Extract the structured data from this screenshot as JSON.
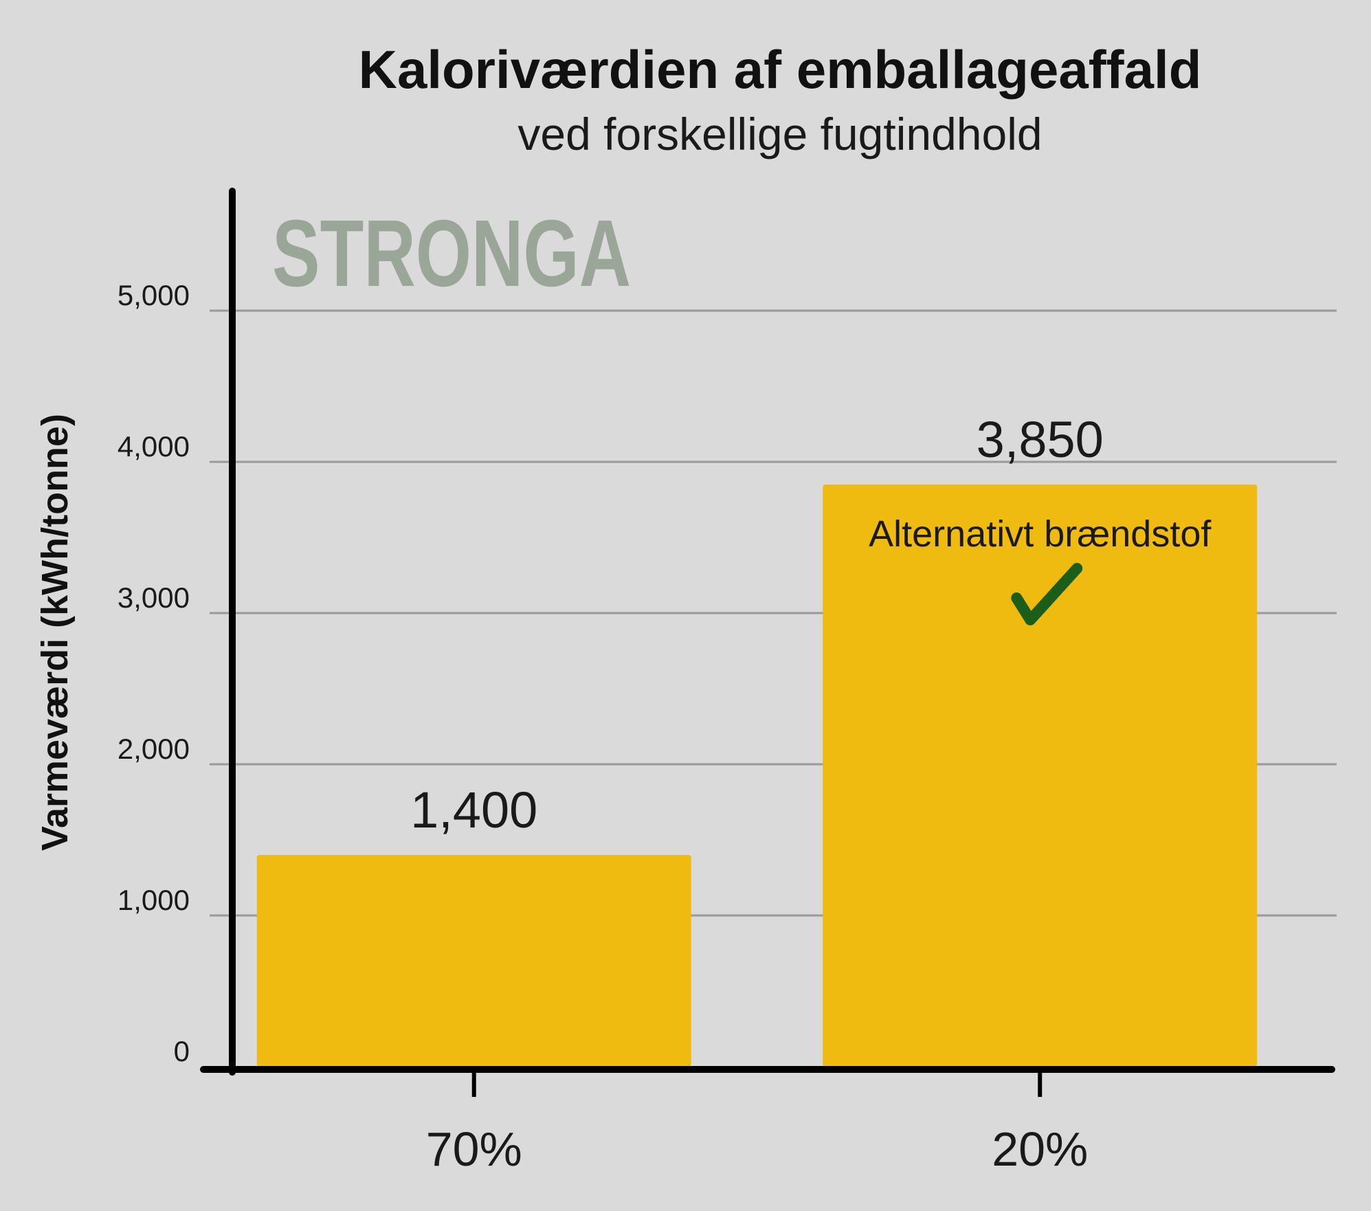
{
  "chart_data": {
    "type": "bar",
    "title": "Kaloriværdien af emballageaffald",
    "subtitle": "ved forskellige fugtindhold",
    "brand": "STRONGA",
    "ylabel": "Varmeværdi (kWh/tonne)",
    "xlabel": "",
    "categories": [
      "70%",
      "20%"
    ],
    "values": [
      1400,
      3850
    ],
    "value_labels": [
      "1,400",
      "3,850"
    ],
    "ylim": [
      0,
      5000
    ],
    "yticks": [
      0,
      1000,
      2000,
      3000,
      4000,
      5000
    ],
    "ytick_labels": [
      "0",
      "1,000",
      "2,000",
      "3,000",
      "4,000",
      "5,000"
    ],
    "grid": true,
    "annotation": {
      "text": "Alternativt brændstof",
      "icon": "check-mark-icon",
      "category_index": 1
    },
    "colors": {
      "bar": "#f0bb10",
      "grid": "#999999",
      "axis": "#000000",
      "brand": "#9aa697",
      "check": "#1a5e1a",
      "background": "#dadada"
    }
  }
}
